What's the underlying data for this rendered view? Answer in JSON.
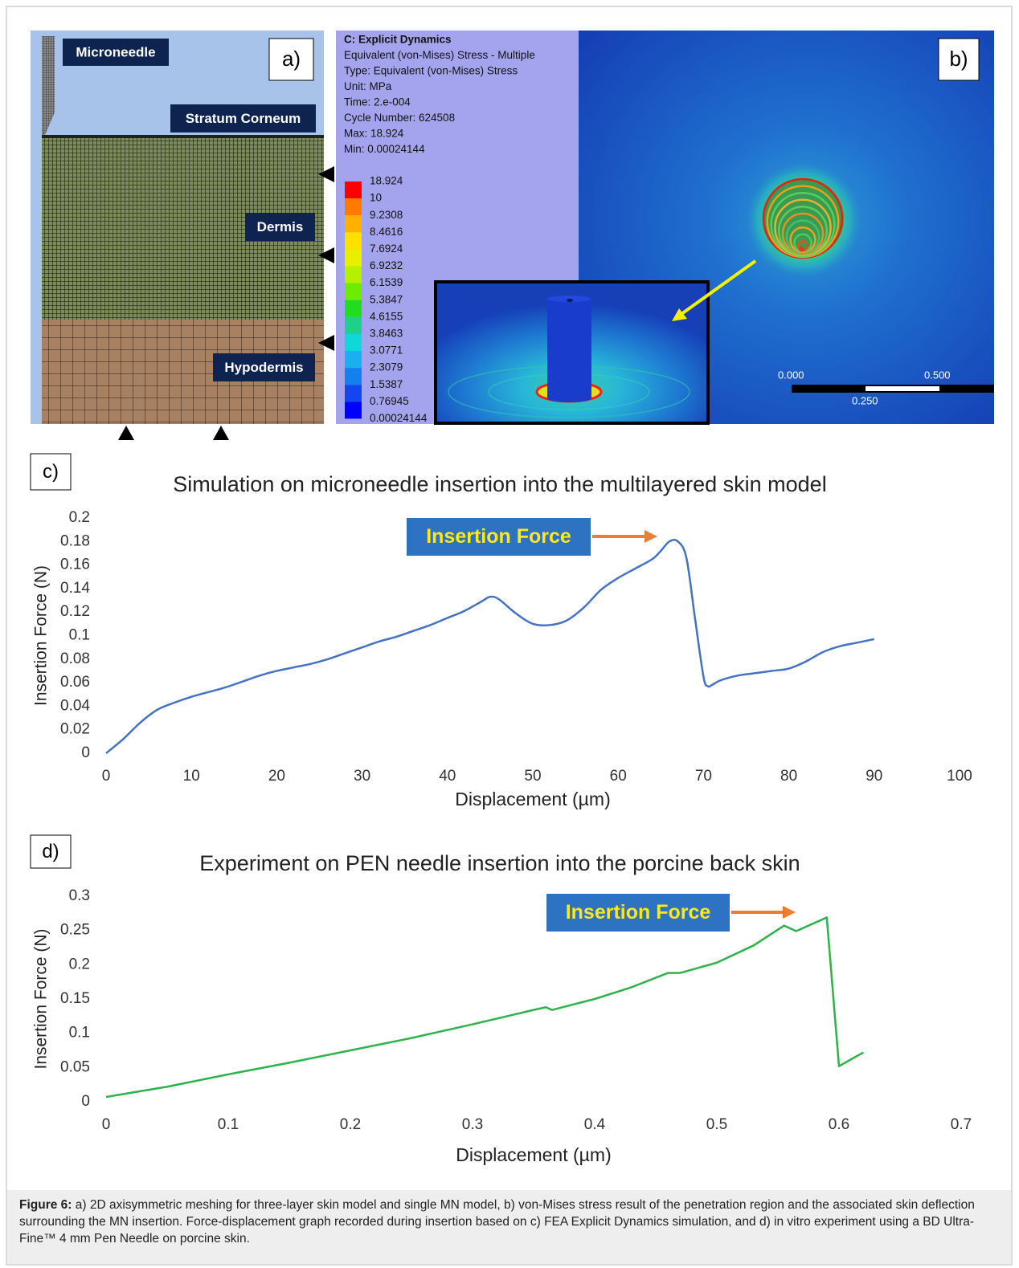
{
  "panel_a": {
    "label": "a)",
    "layers": [
      "Microneedle",
      "Stratum Corneum",
      "Dermis",
      "Hypodermis"
    ]
  },
  "panel_b": {
    "label": "b)",
    "info": [
      "C: Explicit Dynamics",
      "Equivalent (von-Mises) Stress - Multiple",
      "Type: Equivalent (von-Mises) Stress",
      "Unit: MPa",
      "Time: 2.e-004",
      "Cycle Number: 624508",
      "Max: 18.924",
      "Min: 0.00024144"
    ],
    "legend": [
      "18.924",
      "10",
      "9.2308",
      "8.4616",
      "7.6924",
      "6.9232",
      "6.1539",
      "5.3847",
      "4.6155",
      "3.8463",
      "3.0771",
      "2.3079",
      "1.5387",
      "0.76945",
      "0.00024144"
    ],
    "scale": [
      "0.000",
      "0.500",
      "0.250"
    ]
  },
  "chart_data": [
    {
      "type": "line",
      "panel_label": "c)",
      "title": "Simulation on microneedle insertion into the multilayered skin model",
      "x_label": "Displacement (µm)",
      "y_label": "Insertion Force (N)",
      "annotation": "Insertion Force",
      "color": "#4472c4",
      "smooth": true,
      "x": [
        0,
        2,
        4,
        6,
        8,
        10,
        12,
        14,
        16,
        18,
        20,
        22,
        24,
        26,
        28,
        30,
        32,
        34,
        36,
        38,
        40,
        42,
        44,
        45,
        46,
        48,
        50,
        52,
        54,
        56,
        58,
        60,
        62,
        64,
        65,
        66,
        67,
        68,
        69,
        70,
        70.5,
        71,
        72,
        74,
        76,
        78,
        80,
        82,
        84,
        86,
        88,
        90
      ],
      "values": [
        0,
        0.012,
        0.026,
        0.037,
        0.043,
        0.048,
        0.052,
        0.056,
        0.061,
        0.066,
        0.07,
        0.073,
        0.076,
        0.08,
        0.085,
        0.09,
        0.095,
        0.099,
        0.104,
        0.109,
        0.115,
        0.121,
        0.129,
        0.133,
        0.131,
        0.119,
        0.11,
        0.109,
        0.113,
        0.124,
        0.139,
        0.149,
        0.157,
        0.165,
        0.172,
        0.18,
        0.18,
        0.166,
        0.115,
        0.065,
        0.057,
        0.058,
        0.062,
        0.066,
        0.068,
        0.07,
        0.072,
        0.078,
        0.086,
        0.091,
        0.094,
        0.097
      ],
      "xlim": [
        0,
        100
      ],
      "ylim": [
        0,
        0.2
      ],
      "xticks": [
        0,
        10,
        20,
        30,
        40,
        50,
        60,
        70,
        80,
        90,
        100
      ],
      "yticks": [
        0,
        0.02,
        0.04,
        0.06,
        0.08,
        0.1,
        0.12,
        0.14,
        0.16,
        0.18,
        0.2
      ]
    },
    {
      "type": "line",
      "panel_label": "d)",
      "title": "Experiment on PEN needle insertion into the porcine back skin",
      "x_label": "Displacement (µm)",
      "y_label": "Insertion Force (N)",
      "annotation": "Insertion Force",
      "color": "#2eb34a",
      "smooth": false,
      "x": [
        0,
        0.05,
        0.1,
        0.15,
        0.2,
        0.25,
        0.3,
        0.35,
        0.36,
        0.365,
        0.4,
        0.43,
        0.46,
        0.47,
        0.5,
        0.53,
        0.555,
        0.565,
        0.59,
        0.6,
        0.62
      ],
      "values": [
        0.007,
        0.022,
        0.04,
        0.057,
        0.075,
        0.093,
        0.113,
        0.134,
        0.138,
        0.134,
        0.15,
        0.167,
        0.188,
        0.188,
        0.203,
        0.228,
        0.257,
        0.249,
        0.269,
        0.052,
        0.072
      ],
      "xlim": [
        0,
        0.7
      ],
      "ylim": [
        0,
        0.3
      ],
      "xticks": [
        0,
        0.1,
        0.2,
        0.3,
        0.4,
        0.5,
        0.6,
        0.7
      ],
      "yticks": [
        0,
        0.05,
        0.1,
        0.15,
        0.2,
        0.25,
        0.3
      ]
    }
  ],
  "caption": {
    "label": "Figure 6:",
    "text": "a) 2D axisymmetric meshing for three-layer skin model and single MN model, b) von-Mises stress result of the penetration region and the associated skin deflection surrounding the MN insertion. Force-displacement graph recorded during insertion based on c) FEA Explicit Dynamics simulation, and d) in vitro experiment using a BD Ultra-Fine™ 4 mm Pen Needle on porcine skin."
  }
}
